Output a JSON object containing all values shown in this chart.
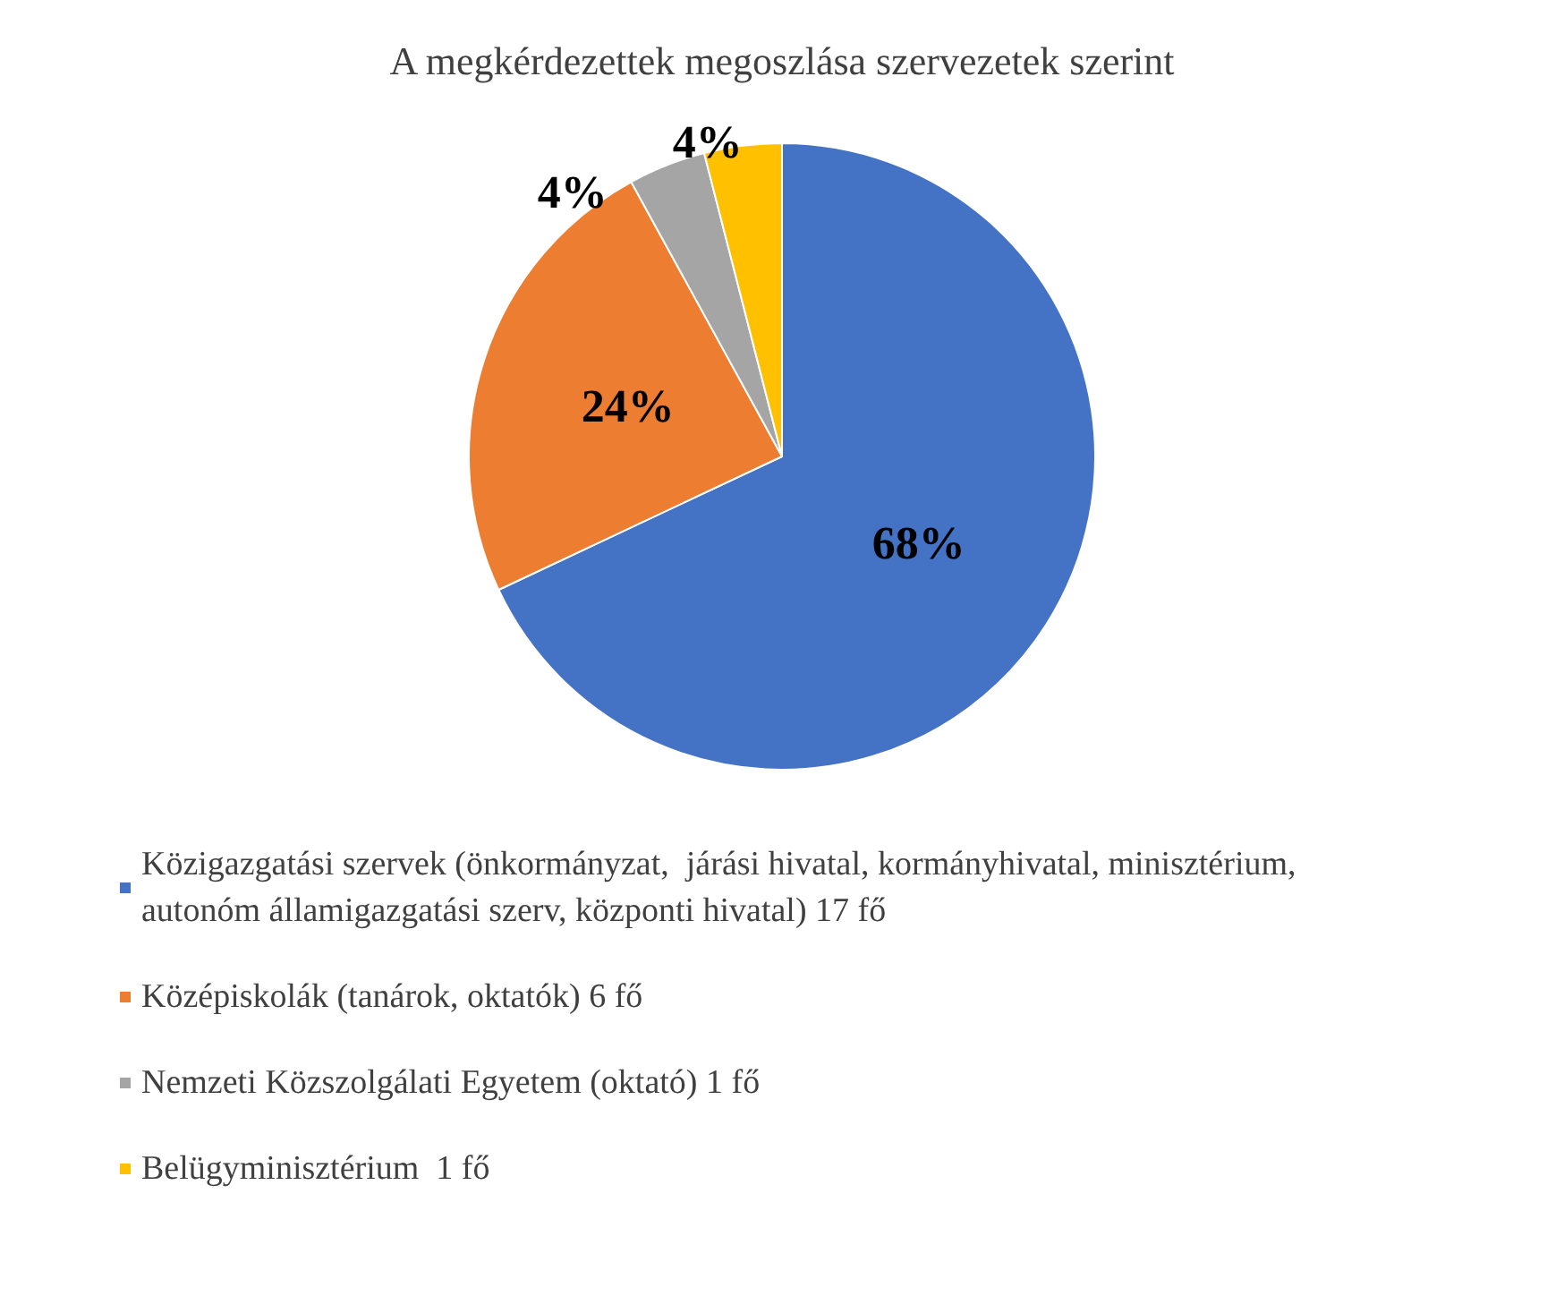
{
  "chart_data": {
    "type": "pie",
    "title": "A megkérdezettek megoszlása szervezetek szerint",
    "categories": [
      "Közigazgatási szervek (önkormányzat,  járási hivatal, kormányhivatal, minisztérium, autonóm államigazgatási szerv, központi hivatal) 17 fő",
      "Középiskolák (tanárok, oktatók) 6 fő",
      "Nemzeti Közszolgálati Egyetem (oktató) 1 fő",
      "Belügyminisztérium  1 fő"
    ],
    "values": [
      68,
      24,
      4,
      4
    ],
    "colors": [
      "#4472c4",
      "#ed7d31",
      "#a5a5a5",
      "#ffc000"
    ],
    "value_labels": [
      "68%",
      "24%",
      "4%",
      "4%"
    ],
    "legend": "bottom"
  }
}
